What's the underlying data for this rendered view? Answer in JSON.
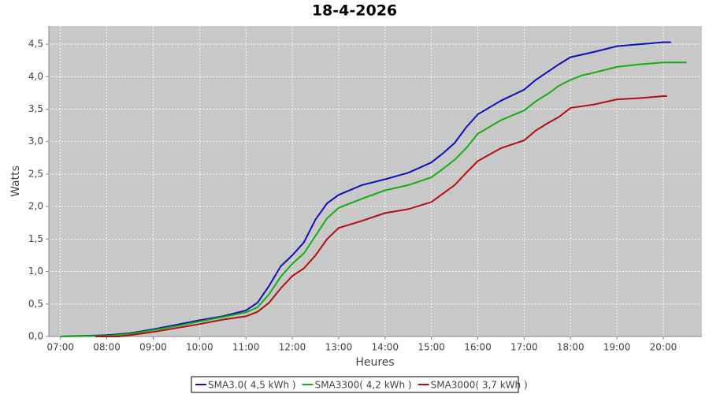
{
  "chart_data": {
    "type": "line",
    "title": "18-4-2026",
    "x_label": "Heures",
    "y_label": "Watts",
    "xlim": [
      "06:45",
      "20:50"
    ],
    "xticks": [
      "07:00",
      "08:00",
      "09:00",
      "10:00",
      "11:00",
      "12:00",
      "13:00",
      "14:00",
      "15:00",
      "16:00",
      "17:00",
      "18:00",
      "19:00",
      "20:00"
    ],
    "ylim": [
      0,
      4.78
    ],
    "yticks": [
      {
        "value": 0,
        "label": "0,0"
      },
      {
        "value": 0.5,
        "label": "0,5"
      },
      {
        "value": 1,
        "label": "1,0"
      },
      {
        "value": 1.5,
        "label": "1,5"
      },
      {
        "value": 2,
        "label": "2,0"
      },
      {
        "value": 2.5,
        "label": "2,5"
      },
      {
        "value": 3,
        "label": "3,0"
      },
      {
        "value": 3.5,
        "label": "3,5"
      },
      {
        "value": 4,
        "label": "4,0"
      },
      {
        "value": 4.5,
        "label": "4,5"
      }
    ],
    "grid": true,
    "series": [
      {
        "name": "SMA3.0( 4,5 kWh )",
        "color": "#1010b8",
        "x": [
          "07:00",
          "08:00",
          "08:30",
          "09:00",
          "09:30",
          "10:00",
          "10:30",
          "11:00",
          "11:15",
          "11:30",
          "11:45",
          "12:00",
          "12:15",
          "12:30",
          "12:45",
          "13:00",
          "13:30",
          "14:00",
          "14:30",
          "15:00",
          "15:15",
          "15:30",
          "15:45",
          "16:00",
          "16:30",
          "17:00",
          "17:15",
          "17:30",
          "17:45",
          "18:00",
          "18:30",
          "19:00",
          "19:30",
          "20:00",
          "20:10"
        ],
        "values": [
          0,
          0.02,
          0.05,
          0.11,
          0.18,
          0.25,
          0.31,
          0.4,
          0.52,
          0.78,
          1.08,
          1.25,
          1.45,
          1.8,
          2.05,
          2.18,
          2.33,
          2.42,
          2.52,
          2.68,
          2.82,
          2.98,
          3.22,
          3.42,
          3.63,
          3.8,
          3.95,
          4.07,
          4.19,
          4.3,
          4.38,
          4.47,
          4.5,
          4.53,
          4.53
        ]
      },
      {
        "name": "SMA3300( 4,2 kWh )",
        "color": "#10b010",
        "x": [
          "07:00",
          "08:00",
          "08:30",
          "09:00",
          "09:30",
          "10:00",
          "10:30",
          "11:00",
          "11:15",
          "11:30",
          "11:45",
          "12:00",
          "12:15",
          "12:30",
          "12:45",
          "13:00",
          "13:30",
          "14:00",
          "14:30",
          "15:00",
          "15:15",
          "15:30",
          "15:45",
          "16:00",
          "16:30",
          "17:00",
          "17:15",
          "17:30",
          "17:45",
          "18:00",
          "18:15",
          "18:30",
          "19:00",
          "19:30",
          "20:00",
          "20:30"
        ],
        "values": [
          0,
          0.01,
          0.04,
          0.1,
          0.16,
          0.23,
          0.3,
          0.37,
          0.45,
          0.65,
          0.92,
          1.12,
          1.28,
          1.55,
          1.82,
          1.98,
          2.12,
          2.25,
          2.33,
          2.45,
          2.58,
          2.72,
          2.9,
          3.12,
          3.33,
          3.48,
          3.62,
          3.73,
          3.86,
          3.95,
          4.02,
          4.06,
          4.15,
          4.19,
          4.22,
          4.22
        ]
      },
      {
        "name": "SMA3000( 3,7 kWh )",
        "color": "#b01010",
        "x": [
          "07:45",
          "08:15",
          "08:30",
          "09:00",
          "09:30",
          "10:00",
          "10:30",
          "11:00",
          "11:15",
          "11:30",
          "11:45",
          "12:00",
          "12:15",
          "12:30",
          "12:45",
          "13:00",
          "13:30",
          "14:00",
          "14:30",
          "15:00",
          "15:15",
          "15:30",
          "15:45",
          "16:00",
          "16:30",
          "17:00",
          "17:15",
          "17:30",
          "17:45",
          "18:00",
          "18:30",
          "19:00",
          "19:30",
          "20:00",
          "20:05"
        ],
        "values": [
          0,
          0,
          0.02,
          0.07,
          0.13,
          0.19,
          0.26,
          0.31,
          0.38,
          0.52,
          0.74,
          0.93,
          1.05,
          1.25,
          1.5,
          1.67,
          1.78,
          1.9,
          1.96,
          2.07,
          2.2,
          2.33,
          2.52,
          2.7,
          2.9,
          3.02,
          3.17,
          3.28,
          3.38,
          3.52,
          3.57,
          3.65,
          3.67,
          3.7,
          3.7
        ]
      }
    ]
  }
}
